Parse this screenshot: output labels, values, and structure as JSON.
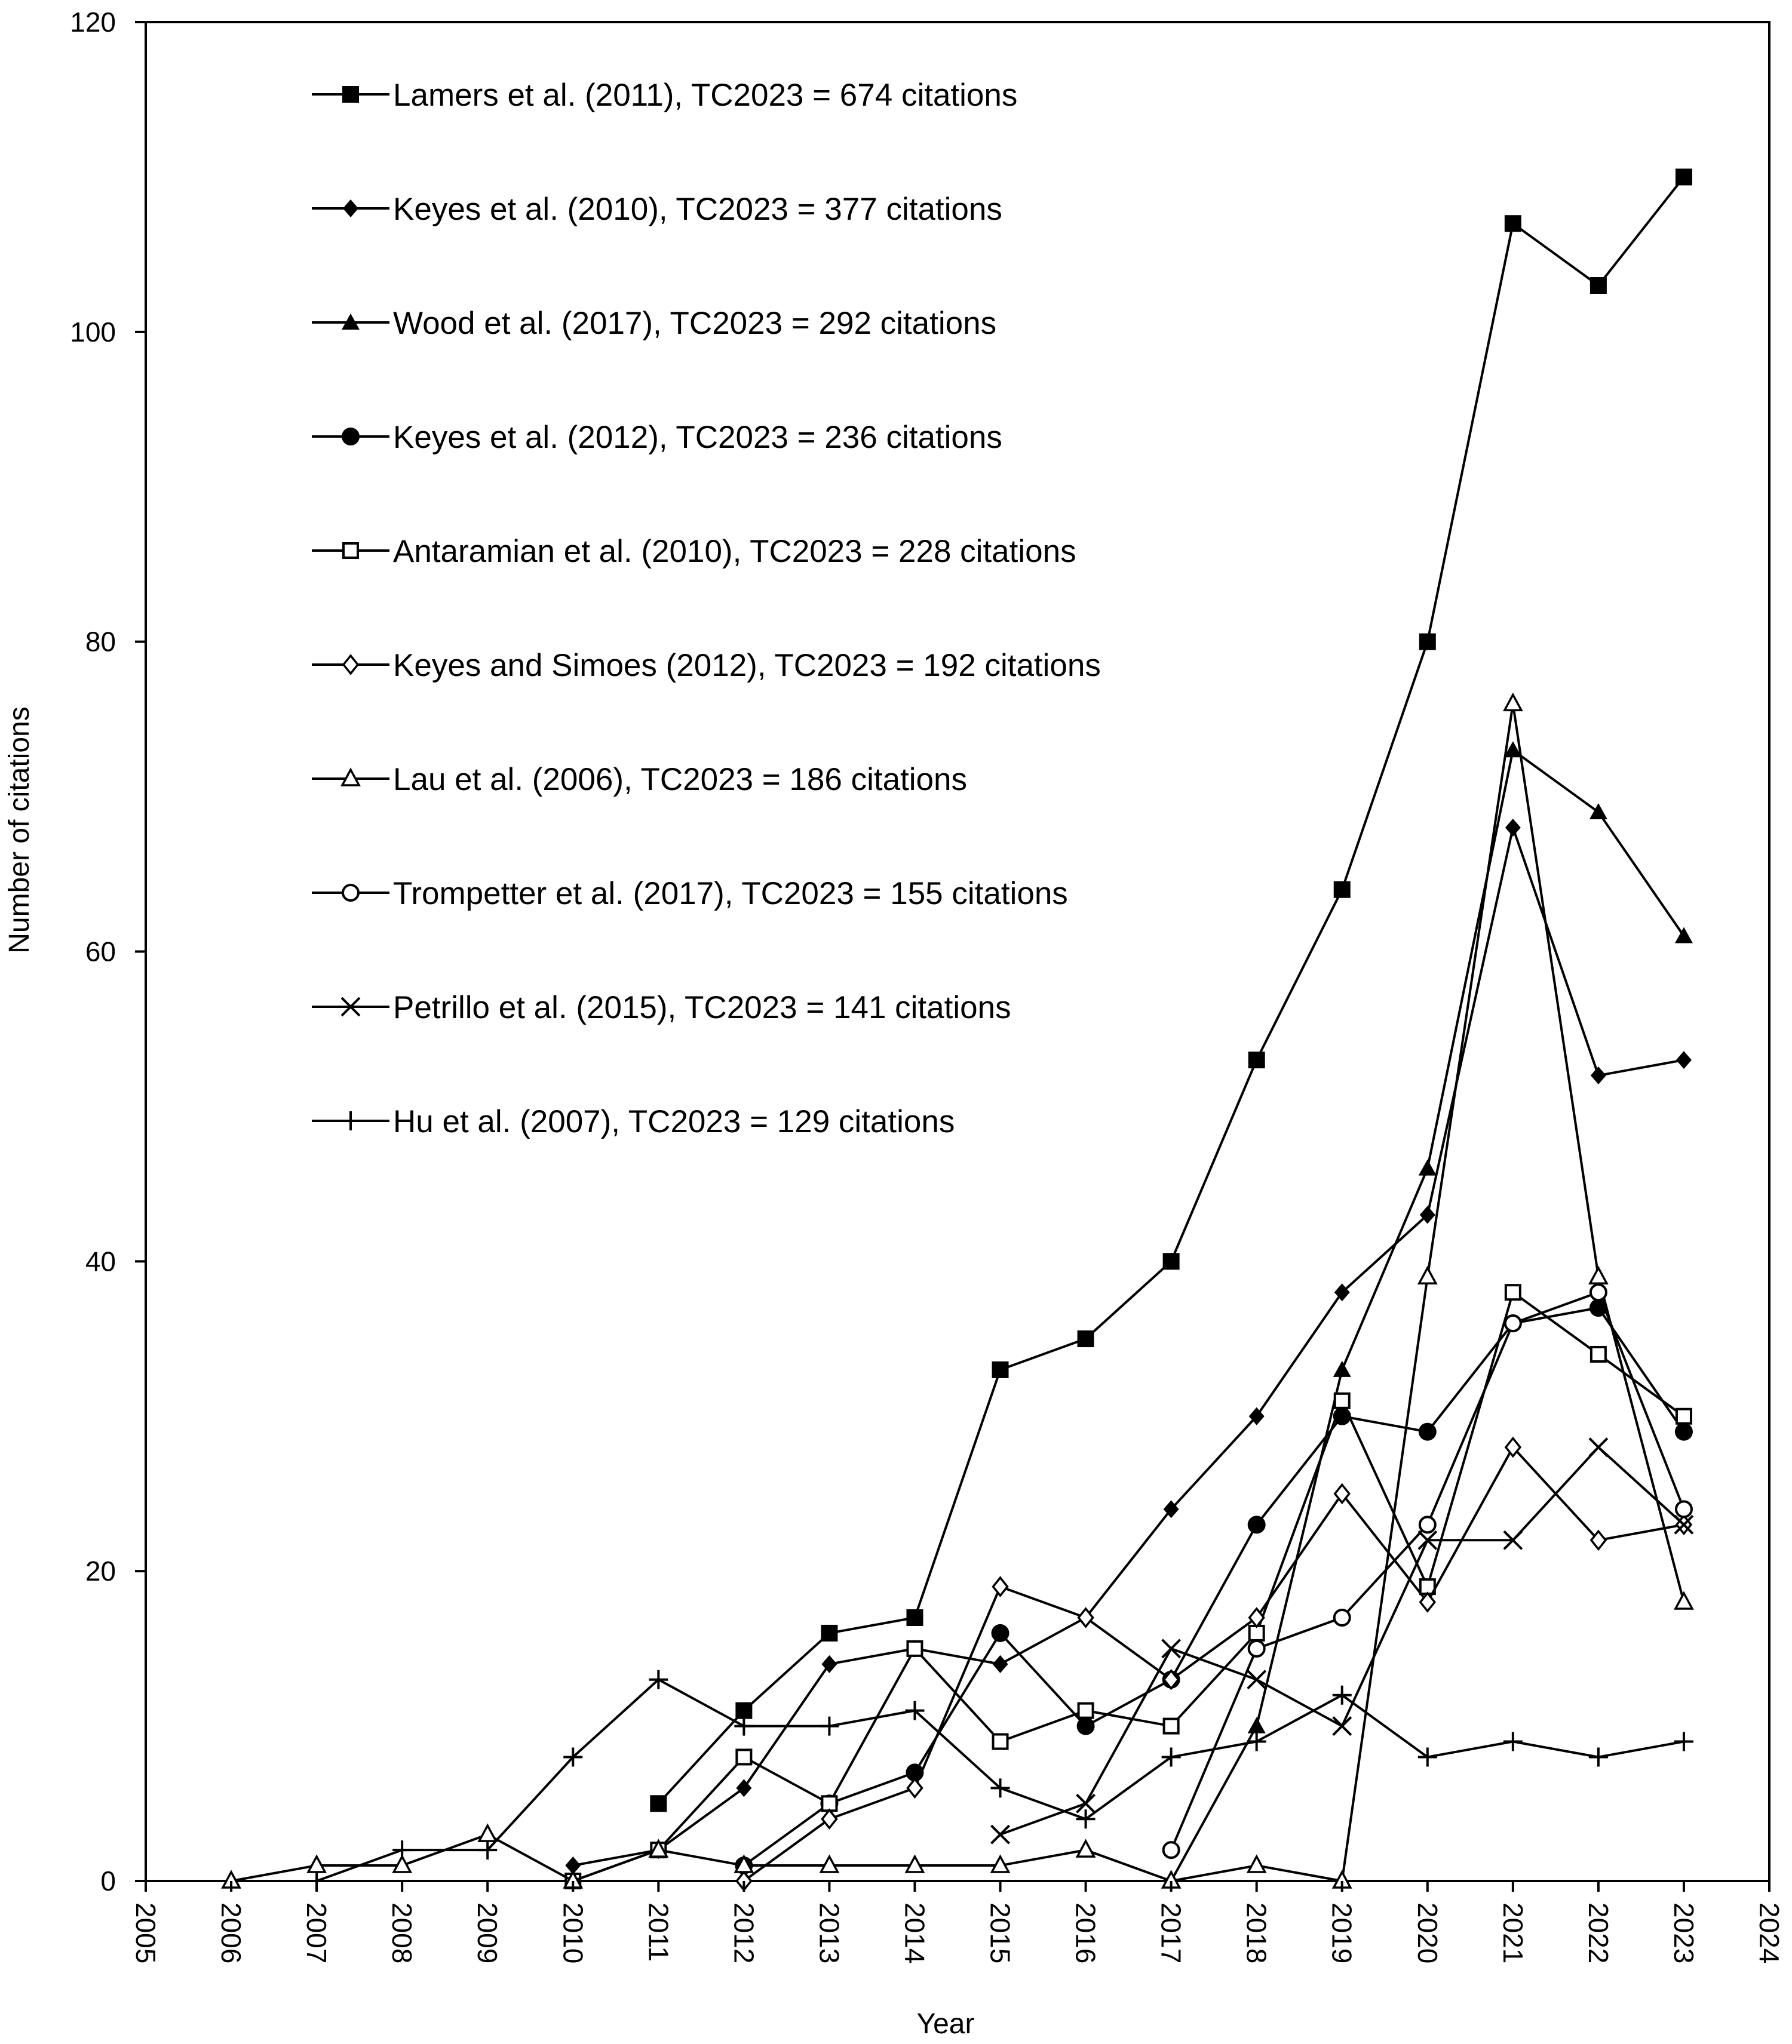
{
  "chart_data": {
    "type": "line",
    "title": "",
    "xlabel": "Year",
    "ylabel": "Number of citations",
    "xlim": [
      2005,
      2024
    ],
    "ylim": [
      0,
      120
    ],
    "xticks": [
      2005,
      2006,
      2007,
      2008,
      2009,
      2010,
      2011,
      2012,
      2013,
      2014,
      2015,
      2016,
      2017,
      2018,
      2019,
      2020,
      2021,
      2022,
      2023,
      2024
    ],
    "yticks": [
      0,
      20,
      40,
      60,
      80,
      100,
      120
    ],
    "grid": false,
    "legend_position": "top-left",
    "series": [
      {
        "name": "Lamers et al. (2011), TC2023 = 674 citations",
        "marker": "square-filled",
        "x": [
          2011,
          2012,
          2013,
          2014,
          2015,
          2016,
          2017,
          2018,
          2019,
          2020,
          2021,
          2022,
          2023
        ],
        "y": [
          5,
          11,
          16,
          17,
          33,
          35,
          40,
          53,
          64,
          80,
          107,
          103,
          110
        ]
      },
      {
        "name": "Keyes et al. (2010), TC2023 = 377 citations",
        "marker": "diamond-filled",
        "x": [
          2010,
          2011,
          2012,
          2013,
          2014,
          2015,
          2016,
          2017,
          2018,
          2019,
          2020,
          2021,
          2022,
          2023
        ],
        "y": [
          1,
          2,
          6,
          14,
          15,
          14,
          17,
          24,
          30,
          38,
          43,
          68,
          52,
          53
        ]
      },
      {
        "name": "Wood et al. (2017), TC2023 = 292 citations",
        "marker": "triangle-filled",
        "x": [
          2017,
          2018,
          2019,
          2020,
          2021,
          2022,
          2023
        ],
        "y": [
          0,
          10,
          33,
          46,
          73,
          69,
          61
        ]
      },
      {
        "name": "Keyes et al. (2012), TC2023 = 236 citations",
        "marker": "circle-filled",
        "x": [
          2012,
          2013,
          2014,
          2015,
          2016,
          2017,
          2018,
          2019,
          2020,
          2021,
          2022,
          2023
        ],
        "y": [
          1,
          5,
          7,
          16,
          10,
          13,
          23,
          30,
          29,
          36,
          37,
          29
        ]
      },
      {
        "name": "Antaramian et al. (2010), TC2023 = 228 citations",
        "marker": "square-open",
        "x": [
          2010,
          2011,
          2012,
          2013,
          2014,
          2015,
          2016,
          2017,
          2018,
          2019,
          2020,
          2021,
          2022,
          2023
        ],
        "y": [
          0,
          2,
          8,
          5,
          15,
          9,
          11,
          10,
          16,
          31,
          19,
          38,
          34,
          30
        ]
      },
      {
        "name": "Keyes and Simoes (2012), TC2023 = 192 citations",
        "marker": "diamond-open",
        "x": [
          2012,
          2013,
          2014,
          2015,
          2016,
          2017,
          2018,
          2019,
          2020,
          2021,
          2022,
          2023
        ],
        "y": [
          0,
          4,
          6,
          19,
          17,
          13,
          17,
          25,
          18,
          28,
          22,
          23
        ]
      },
      {
        "name": "Lau et al. (2006), TC2023 = 186 citations",
        "marker": "triangle-open",
        "x": [
          2006,
          2007,
          2008,
          2009,
          2010,
          2011,
          2012,
          2013,
          2014,
          2015,
          2016,
          2017,
          2018,
          2019,
          2020,
          2021,
          2022,
          2023
        ],
        "y": [
          0,
          1,
          1,
          3,
          0,
          2,
          1,
          1,
          1,
          1,
          2,
          0,
          1,
          0,
          39,
          76,
          39,
          18
        ]
      },
      {
        "name": "Trompetter et al. (2017), TC2023 = 155 citations",
        "marker": "circle-open",
        "x": [
          2017,
          2018,
          2019,
          2020,
          2021,
          2022,
          2023
        ],
        "y": [
          2,
          15,
          17,
          23,
          36,
          38,
          24
        ]
      },
      {
        "name": "Petrillo et al. (2015), TC2023 = 141 citations",
        "marker": "x",
        "x": [
          2015,
          2016,
          2017,
          2018,
          2019,
          2020,
          2021,
          2022,
          2023
        ],
        "y": [
          3,
          5,
          15,
          13,
          10,
          22,
          22,
          28,
          23
        ]
      },
      {
        "name": "Hu et al. (2007), TC2023 = 129 citations",
        "marker": "plus",
        "x": [
          2007,
          2008,
          2009,
          2010,
          2011,
          2012,
          2013,
          2014,
          2015,
          2016,
          2017,
          2018,
          2019,
          2020,
          2021,
          2022,
          2023
        ],
        "y": [
          0,
          2,
          2,
          8,
          13,
          10,
          10,
          11,
          6,
          4,
          8,
          9,
          12,
          8,
          9,
          8,
          9
        ]
      }
    ]
  }
}
